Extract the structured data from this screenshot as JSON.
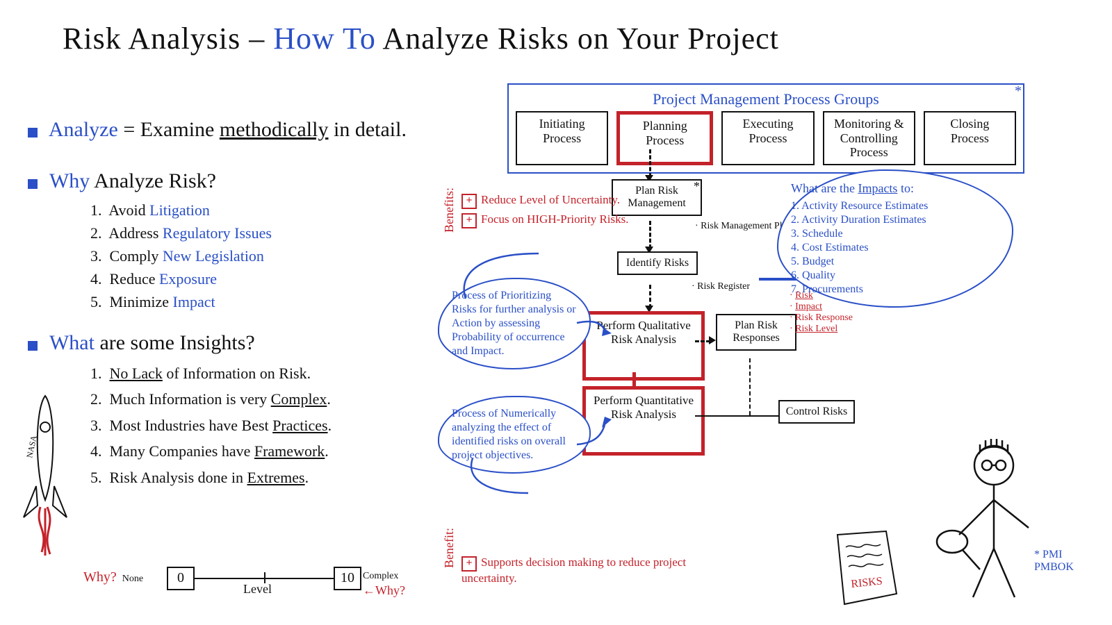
{
  "title": {
    "part1": "Risk Analysis –",
    "part2": "How To",
    "part3": " Analyze Risks on Your Project"
  },
  "def": {
    "lead": "Analyze",
    "eq": " = Examine ",
    "kw": "methodically",
    "tail": " in detail."
  },
  "why": {
    "heading_blue": "Why",
    "heading_rest": " Analyze Risk?",
    "items": [
      {
        "k": "Avoid",
        "v": "Litigation"
      },
      {
        "k": "Address",
        "v": "Regulatory Issues"
      },
      {
        "k": "Comply",
        "v": "New Legislation"
      },
      {
        "k": "Reduce",
        "v": "Exposure"
      },
      {
        "k": "Minimize",
        "v": "Impact"
      }
    ]
  },
  "insights": {
    "heading_blue": "What",
    "heading_rest": " are some Insights?",
    "items": [
      "No Lack of Information on Risk.",
      "Much Information is very Complex.",
      "Most Industries have Best Practices.",
      "Many Companies have Framework.",
      "Risk Analysis done in Extremes."
    ],
    "underlines": [
      "No Lack",
      "Complex",
      "Practices",
      "Framework",
      "Extremes"
    ]
  },
  "scale": {
    "left_label": "Why?",
    "left_sub": "None",
    "left_val": "0",
    "mid": "Level",
    "right_val": "10",
    "right_sub": "Complex",
    "right_label": "Why?"
  },
  "pm": {
    "title": "Project Management Process Groups",
    "boxes": [
      "Initiating Process",
      "Planning Process",
      "Executing Process",
      "Monitoring & Controlling Process",
      "Closing Process"
    ],
    "highlight_index": 1,
    "asterisk": "*"
  },
  "flow": {
    "plan_risk": "Plan Risk Management",
    "plan_risk_note": "Risk Management Plan",
    "identify": "Identify Risks",
    "identify_note": "Risk Register",
    "qual": "Perform Qualitative Risk Analysis",
    "quant": "Perform Quantitative Risk Analysis",
    "plan_resp": "Plan Risk Responses",
    "control": "Control Risks",
    "reg_out": [
      "Risk",
      "Impact",
      "Risk Response",
      "Risk Level"
    ]
  },
  "benefits_top": {
    "label": "Benefits:",
    "lines": [
      "Reduce Level of Uncertainty.",
      "Focus on HIGH-Priority Risks."
    ]
  },
  "benefit_bottom": {
    "label": "Benefit:",
    "line": "Supports decision making to reduce project uncertainty."
  },
  "cloud_qual": "Process of Prioritizing Risks for further analysis or Action by assessing Probability of occurrence and Impact.",
  "cloud_quant": "Process of Numerically analyzing the effect of identified risks on overall project objectives.",
  "cloud_impacts": {
    "title": "What are the Impacts to:",
    "items": [
      "Activity Resource Estimates",
      "Activity Duration Estimates",
      "Schedule",
      "Cost Estimates",
      "Budget",
      "Quality",
      "Procurements"
    ]
  },
  "footnote": "* PMI PMBOK",
  "rocket_label": "NASA",
  "risks_paper": "RISKS",
  "colors": {
    "blue": "#2a4fc7",
    "red": "#c4222a",
    "black": "#111111",
    "bg": "#ffffff"
  }
}
